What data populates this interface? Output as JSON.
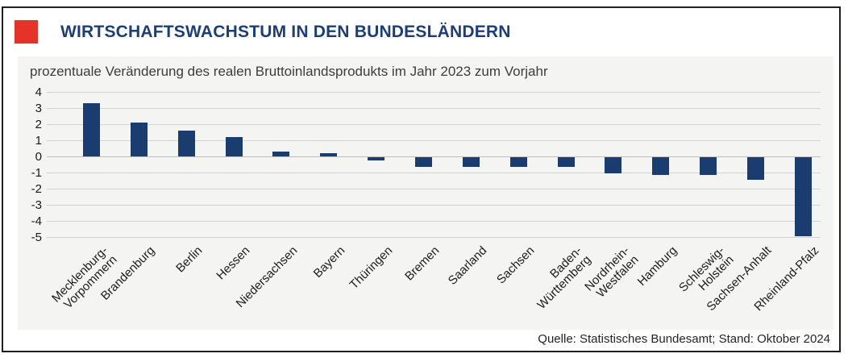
{
  "header": {
    "title": "WIRTSCHAFTSWACHSTUM IN DEN BUNDESLÄNDERN"
  },
  "chart_data": {
    "type": "bar",
    "title": "prozentuale Veränderung des realen Bruttoinlandsprodukts im Jahr 2023 zum Vorjahr",
    "categories": [
      "Mecklenburg-Vorpommern",
      "Brandenburg",
      "Berlin",
      "Hessen",
      "Niedersachsen",
      "Bayern",
      "Thüringen",
      "Bremen",
      "Saarland",
      "Sachsen",
      "Baden-Württemberg",
      "Nordrhein-Westfalen",
      "Hamburg",
      "Schleswig-Holstein",
      "Sachsen-Anhalt",
      "Rheinland-Pfalz"
    ],
    "tick_labels": [
      "Mecklenburg-\nVorpommern",
      "Brandenburg",
      "Berlin",
      "Hessen",
      "Niedersachsen",
      "Bayern",
      "Thüringen",
      "Bremen",
      "Saarland",
      "Sachsen",
      "Baden-\nWürttemberg",
      "Nordrhein-\nWestfalen",
      "Hamburg",
      "Schleswig-\nHolstein",
      "Sachsen-Anhalt",
      "Rheinland-Pfalz"
    ],
    "values": [
      3.3,
      2.1,
      1.6,
      1.2,
      0.3,
      0.2,
      -0.2,
      -0.6,
      -0.6,
      -0.6,
      -0.6,
      -1.0,
      -1.1,
      -1.1,
      -1.4,
      -4.9
    ],
    "unit": "%",
    "xlabel": "",
    "ylabel": "",
    "ylim": [
      -5,
      4
    ],
    "yticks": [
      4,
      3,
      2,
      1,
      0,
      -1,
      -2,
      -3,
      -4,
      -5
    ],
    "grid": true,
    "legend": "none",
    "source": "Quelle: Statistisches Bundesamt; Stand: Oktober 2024"
  },
  "colors": {
    "accent_red": "#e6332a",
    "title_blue": "#1c3e77",
    "bar_navy": "#1a3c6e",
    "panel_bg": "#f4f4f2",
    "gridline": "#d4d4d4"
  }
}
